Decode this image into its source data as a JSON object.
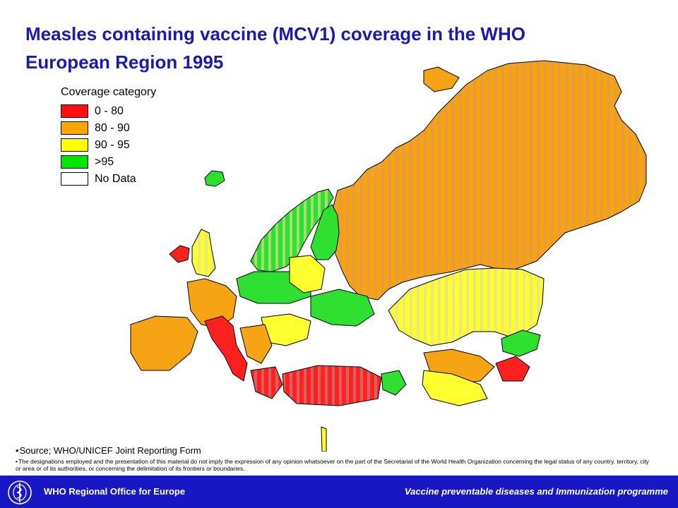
{
  "title": "Measles containing vaccine (MCV1) coverage in the WHO European Region 1995",
  "legend": {
    "title": "Coverage category",
    "items": [
      {
        "label": "0 - 80",
        "color": "#ff1010"
      },
      {
        "label": "80 - 90",
        "color": "#ffa500"
      },
      {
        "label": "90 - 95",
        "color": "#ffff00"
      },
      {
        "label": ">95",
        "color": "#00e600"
      },
      {
        "label": "No Data",
        "color": "#ffffff"
      }
    ]
  },
  "source": "Source; WHO/UNICEF Joint Reporting Form",
  "disclaimer": "The designations employed and the presentation of this material do not imply the expression of any opinion whatsoever on the part of the Secretariat of the World Health Organization concerning the legal status of any country, territory, city or area or of its authorities, or concerning the delimitation of its frontiers or boundaries.",
  "footer": {
    "left": "WHO Regional Office for Europe",
    "right": "Vaccine preventable diseases and Immunization programme",
    "logo_icon": "who-emblem-icon"
  }
}
